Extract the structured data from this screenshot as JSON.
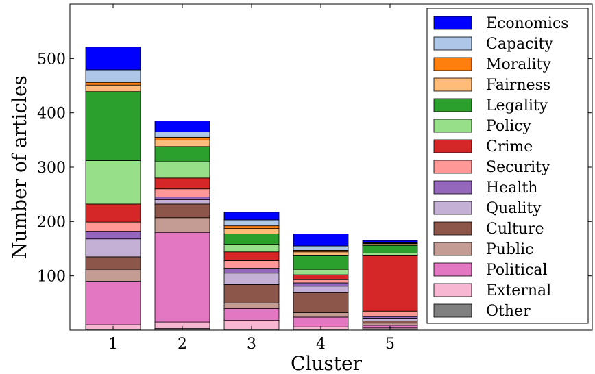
{
  "chart_data": {
    "type": "bar",
    "stacked": true,
    "xlabel": "Cluster",
    "ylabel": "Number of articles",
    "ylim": [
      0,
      600
    ],
    "yticks": [
      100,
      200,
      300,
      400,
      500
    ],
    "categories": [
      "1",
      "2",
      "3",
      "4",
      "5"
    ],
    "legend_position": "top-right",
    "grid": false,
    "series": [
      {
        "name": "Other",
        "color": "#808080",
        "values": [
          2,
          3,
          2,
          2,
          2
        ]
      },
      {
        "name": "External",
        "color": "#f7b6d2",
        "values": [
          8,
          12,
          16,
          4,
          2
        ]
      },
      {
        "name": "Political",
        "color": "#e377c2",
        "values": [
          80,
          165,
          22,
          18,
          5
        ]
      },
      {
        "name": "Public",
        "color": "#c49c94",
        "values": [
          22,
          27,
          10,
          8,
          4
        ]
      },
      {
        "name": "Culture",
        "color": "#8c564b",
        "values": [
          23,
          25,
          34,
          37,
          4
        ]
      },
      {
        "name": "Quality",
        "color": "#c5b0d5",
        "values": [
          33,
          8,
          21,
          12,
          5
        ]
      },
      {
        "name": "Health",
        "color": "#9467bd",
        "values": [
          14,
          5,
          9,
          6,
          3
        ]
      },
      {
        "name": "Security",
        "color": "#ff9896",
        "values": [
          17,
          15,
          14,
          6,
          10
        ]
      },
      {
        "name": "Crime",
        "color": "#d62728",
        "values": [
          33,
          20,
          16,
          9,
          102
        ]
      },
      {
        "name": "Policy",
        "color": "#98df8a",
        "values": [
          80,
          30,
          14,
          10,
          5
        ]
      },
      {
        "name": "Legality",
        "color": "#2ca02c",
        "values": [
          127,
          28,
          19,
          25,
          14
        ]
      },
      {
        "name": "Fairness",
        "color": "#ffbb78",
        "values": [
          12,
          12,
          10,
          7,
          3
        ]
      },
      {
        "name": "Morality",
        "color": "#ff7f0e",
        "values": [
          5,
          5,
          5,
          3,
          1
        ]
      },
      {
        "name": "Capacity",
        "color": "#aec7e8",
        "values": [
          23,
          10,
          11,
          8,
          1
        ]
      },
      {
        "name": "Economics",
        "color": "#0000ff",
        "values": [
          42,
          20,
          14,
          22,
          4
        ]
      }
    ]
  }
}
